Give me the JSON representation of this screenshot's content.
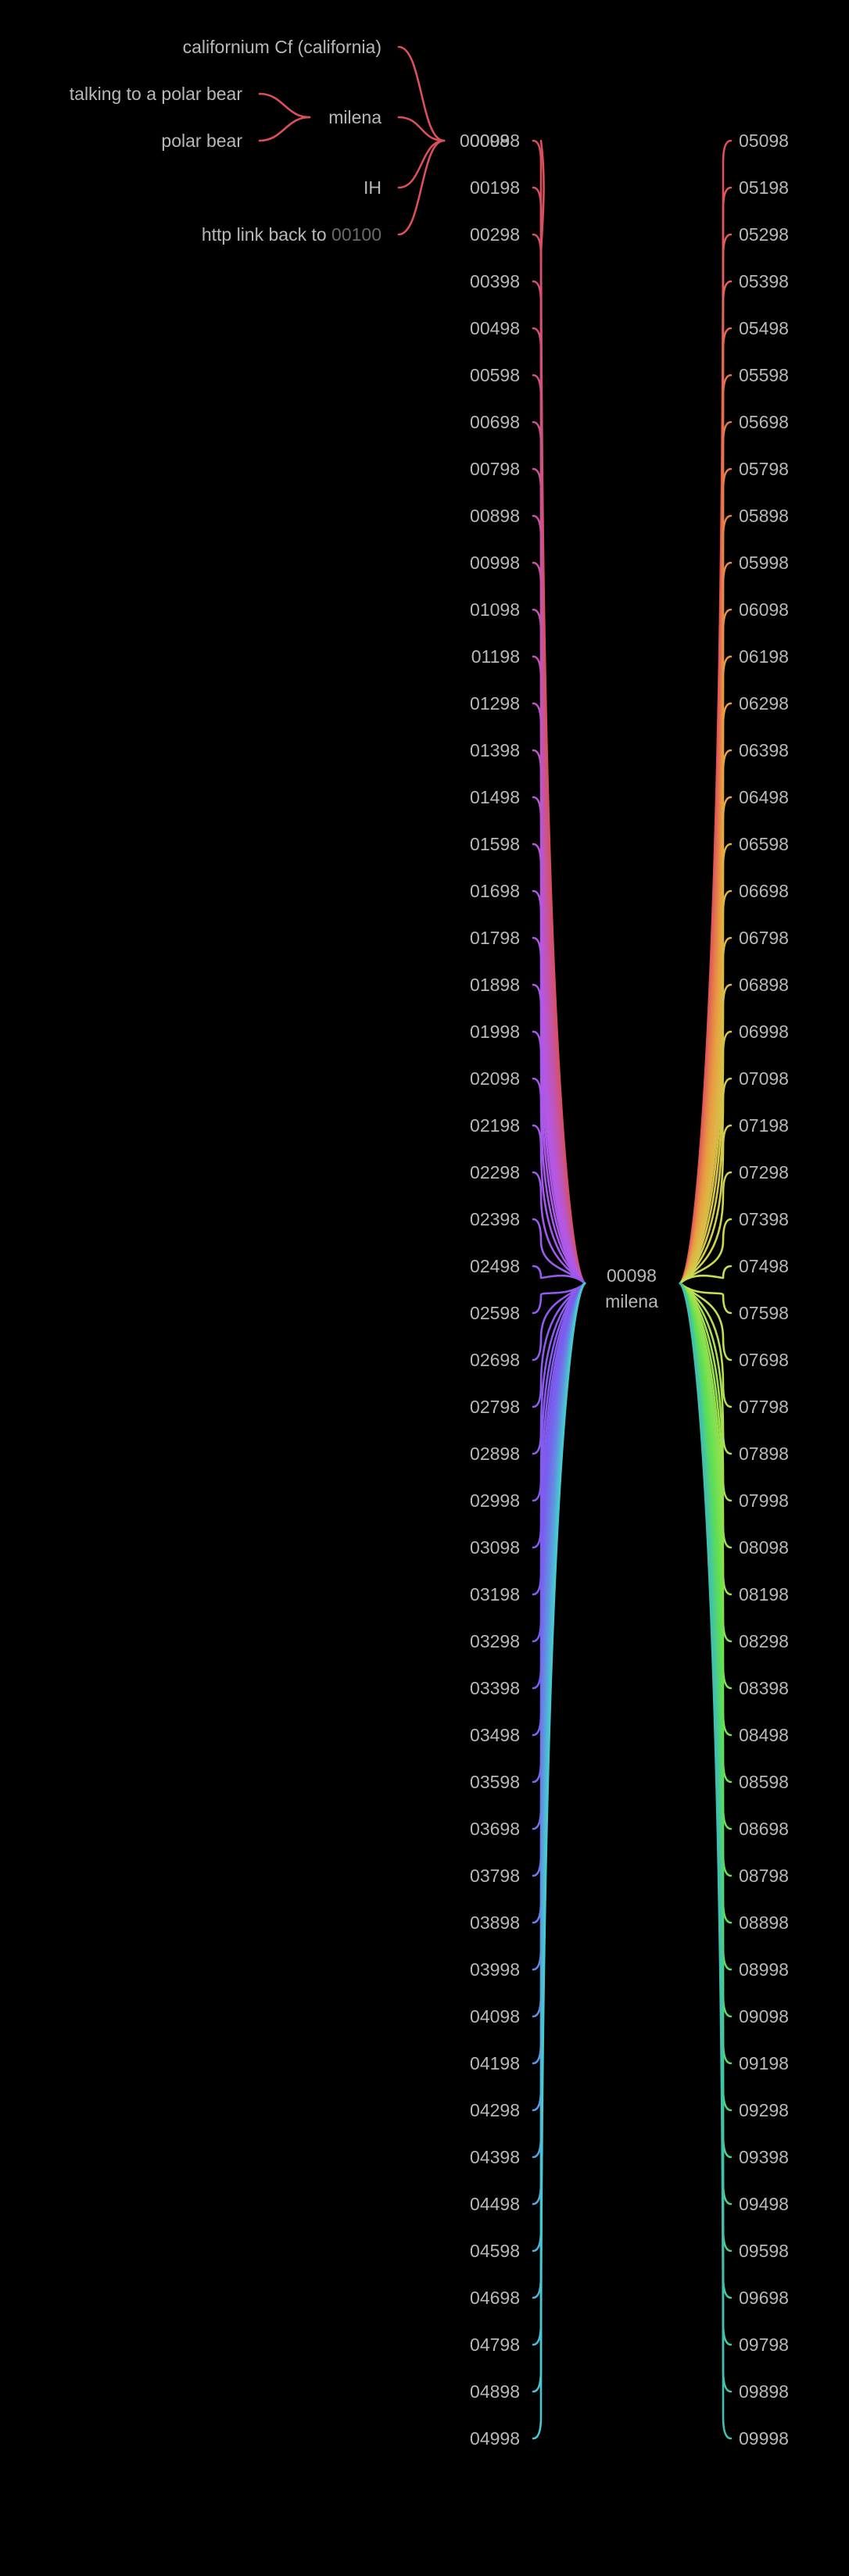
{
  "header_tree": {
    "root": "00098",
    "children": [
      {
        "label": "californium Cf (california)"
      },
      {
        "label": "milena",
        "children": [
          {
            "label": "talking to a polar bear"
          },
          {
            "label": "polar bear"
          }
        ]
      },
      {
        "label": "IH"
      },
      {
        "label": "http link back to ",
        "link": "00100"
      }
    ],
    "color": "#d9505a"
  },
  "hub": {
    "line1": "00098",
    "line2": "milena"
  },
  "left_fan": {
    "start": 98,
    "end": 4998,
    "step": 100,
    "pad": 5,
    "color_stops": [
      "#d9505a",
      "#b458e6",
      "#7a5cf0",
      "#48c8d0"
    ]
  },
  "right_fan": {
    "start": 5098,
    "end": 9998,
    "step": 100,
    "pad": 5,
    "color_stops": [
      "#e0505a",
      "#e8a040",
      "#c8e050",
      "#60e050",
      "#40c0b0"
    ]
  }
}
